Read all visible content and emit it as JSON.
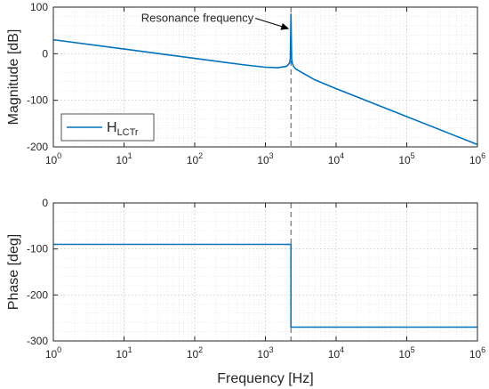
{
  "chart_data": [
    {
      "type": "line",
      "panel": "magnitude",
      "title": "",
      "xlabel": "",
      "ylabel": "Magnitude [dB]",
      "xscale": "log",
      "xlim": [
        1,
        1000000
      ],
      "ylim": [
        -200,
        100
      ],
      "x_ticks": [
        {
          "value": 1,
          "exp": "0"
        },
        {
          "value": 10,
          "exp": "1"
        },
        {
          "value": 100,
          "exp": "2"
        },
        {
          "value": 1000,
          "exp": "3"
        },
        {
          "value": 10000,
          "exp": "4"
        },
        {
          "value": 100000,
          "exp": "5"
        },
        {
          "value": 1000000,
          "exp": "6"
        }
      ],
      "x_tick_base": "10",
      "y_ticks": [
        {
          "value": 100,
          "label": "100"
        },
        {
          "value": 0,
          "label": "0"
        },
        {
          "value": -100,
          "label": "-100"
        },
        {
          "value": -200,
          "label": "-200"
        }
      ],
      "grid": true,
      "minor_grid": true,
      "legend": {
        "position": "bottom-left",
        "entries": [
          {
            "main": "H",
            "sub": "LCTr"
          }
        ]
      },
      "series": [
        {
          "name": "H_LCTr",
          "color": "#0072bd",
          "x": [
            1,
            10,
            100,
            500,
            1000,
            1500,
            2000,
            2200,
            2250,
            2300,
            2350,
            2400,
            2500,
            2700,
            3000,
            5000,
            10000,
            100000,
            1000000
          ],
          "y": [
            30,
            10,
            -10,
            -24,
            -29,
            -30,
            -27,
            -20,
            -10,
            85,
            -10,
            -20,
            -27,
            -33,
            -37,
            -56,
            -75,
            -135,
            -195
          ]
        }
      ],
      "reference_lines": [
        {
          "orientation": "vertical",
          "x": 2300,
          "style": "dashed",
          "color": "#555555"
        }
      ],
      "annotations": [
        {
          "text": "Resonance frequency",
          "arrow_to": {
            "x": 2300,
            "y": 80
          }
        }
      ]
    },
    {
      "type": "line",
      "panel": "phase",
      "title": "",
      "xlabel": "Frequency [Hz]",
      "ylabel": "Phase [deg]",
      "xscale": "log",
      "xlim": [
        1,
        1000000
      ],
      "ylim": [
        -300,
        0
      ],
      "x_ticks": [
        {
          "value": 1,
          "exp": "0"
        },
        {
          "value": 10,
          "exp": "1"
        },
        {
          "value": 100,
          "exp": "2"
        },
        {
          "value": 1000,
          "exp": "3"
        },
        {
          "value": 10000,
          "exp": "4"
        },
        {
          "value": 100000,
          "exp": "5"
        },
        {
          "value": 1000000,
          "exp": "6"
        }
      ],
      "x_tick_base": "10",
      "y_ticks": [
        {
          "value": 0,
          "label": "0"
        },
        {
          "value": -100,
          "label": "-100"
        },
        {
          "value": -200,
          "label": "-200"
        },
        {
          "value": -300,
          "label": "-300"
        }
      ],
      "grid": true,
      "minor_grid": true,
      "series": [
        {
          "name": "H_LCTr",
          "color": "#0072bd",
          "x": [
            1,
            2300,
            2300,
            1000000
          ],
          "y": [
            -90,
            -90,
            -270,
            -270
          ]
        }
      ],
      "reference_lines": [
        {
          "orientation": "vertical",
          "x": 2300,
          "style": "dashed",
          "color": "#555555"
        }
      ]
    }
  ]
}
